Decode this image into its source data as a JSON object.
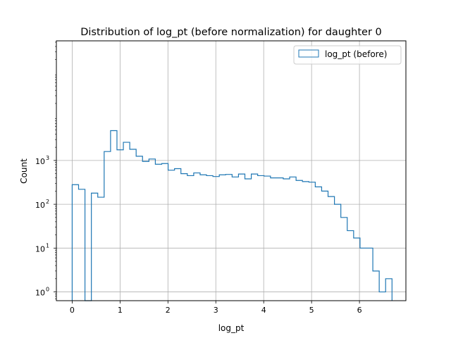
{
  "chart_data": {
    "type": "histogram",
    "title": "Distribution of log_pt (before normalization) for daughter 0",
    "xlabel": "log_pt",
    "ylabel": "Count",
    "xlim": [
      -0.33,
      6.97
    ],
    "ylim_log10": [
      -0.2,
      5.73
    ],
    "yscale": "log",
    "grid": true,
    "legend": {
      "position": "top-right",
      "entries": [
        "log_pt (before)"
      ]
    },
    "series_color": "#1f77b4",
    "xticks": [
      0,
      1,
      2,
      3,
      4,
      5,
      6
    ],
    "xtick_labels": [
      "0",
      "1",
      "2",
      "3",
      "4",
      "5",
      "6"
    ],
    "yticks": [
      1,
      10,
      100,
      1000
    ],
    "ytick_labels": [
      "10",
      "10",
      "10",
      "10"
    ],
    "ytick_exponents": [
      "0",
      "1",
      "2",
      "3"
    ],
    "bin_edges": [
      0,
      0.1336,
      0.2672,
      0.4008,
      0.5344,
      0.668,
      0.8016,
      0.9352,
      1.0688,
      1.2024,
      1.336,
      1.4696,
      1.6032,
      1.7368,
      1.8704,
      2.004,
      2.1376,
      2.2712,
      2.4048,
      2.5384,
      2.672,
      2.8056,
      2.9392,
      3.0728,
      3.2064,
      3.34,
      3.4736,
      3.6072,
      3.7408,
      3.8744,
      4.008,
      4.1416,
      4.2752,
      4.4088,
      4.5424,
      4.676,
      4.8096,
      4.9432,
      5.0768,
      5.2104,
      5.344,
      5.4776,
      5.6112,
      5.7448,
      5.8784,
      6.012,
      6.1456,
      6.2792,
      6.4128,
      6.5464,
      6.68
    ],
    "counts": [
      280,
      220,
      0,
      180,
      145,
      1600,
      4800,
      1750,
      2600,
      1800,
      1250,
      950,
      1080,
      820,
      850,
      600,
      650,
      500,
      450,
      520,
      470,
      450,
      430,
      470,
      480,
      420,
      490,
      380,
      490,
      450,
      440,
      400,
      400,
      380,
      420,
      350,
      330,
      320,
      250,
      200,
      150,
      100,
      50,
      25,
      17,
      10,
      10,
      3,
      1,
      2
    ]
  }
}
